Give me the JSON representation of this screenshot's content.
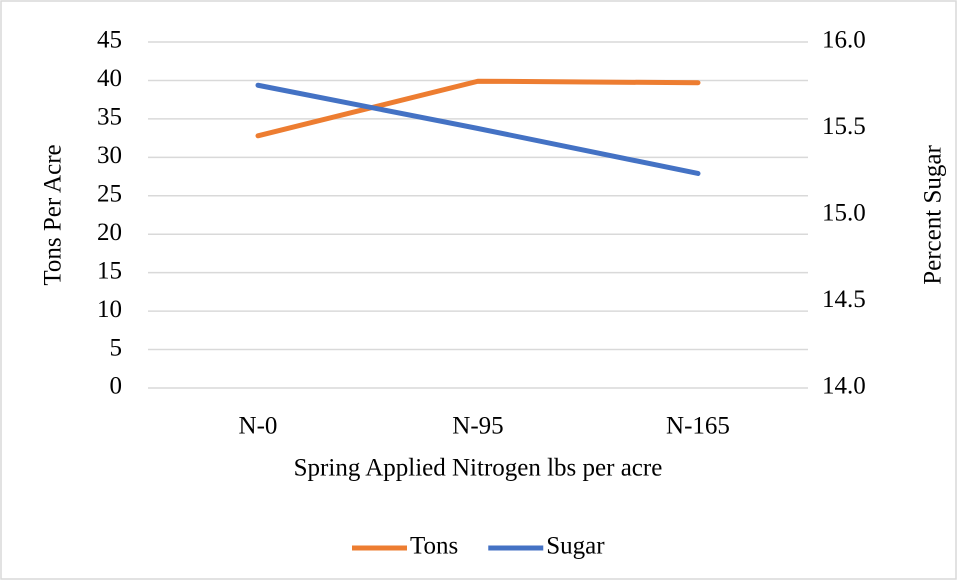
{
  "chart_data": {
    "type": "line",
    "categories": [
      "N-0",
      "N-95",
      "N-165"
    ],
    "series": [
      {
        "name": "Tons",
        "color": "#ed7d31",
        "values": [
          32.8,
          39.9,
          39.7
        ]
      },
      {
        "name": "Sugar",
        "color": "#4472c4",
        "axis": "y2",
        "values": [
          15.75,
          15.5,
          15.24
        ]
      }
    ],
    "ylim": [
      0,
      45
    ],
    "yticks": [
      0,
      5,
      10,
      15,
      20,
      25,
      30,
      35,
      40,
      45
    ],
    "y2lim": [
      14,
      16
    ],
    "y2ticks": [
      {
        "value": 14,
        "label": "14.0"
      },
      14.5,
      {
        "value": 15,
        "label": "15.0"
      },
      15.5,
      {
        "value": 16,
        "label": "16.0"
      }
    ],
    "xlabel": "Spring Applied Nitrogen lbs per acre",
    "ylabel": "Tons Per Acre",
    "y2label": "Percent Sugar",
    "grid": true,
    "legend": "bottom"
  }
}
